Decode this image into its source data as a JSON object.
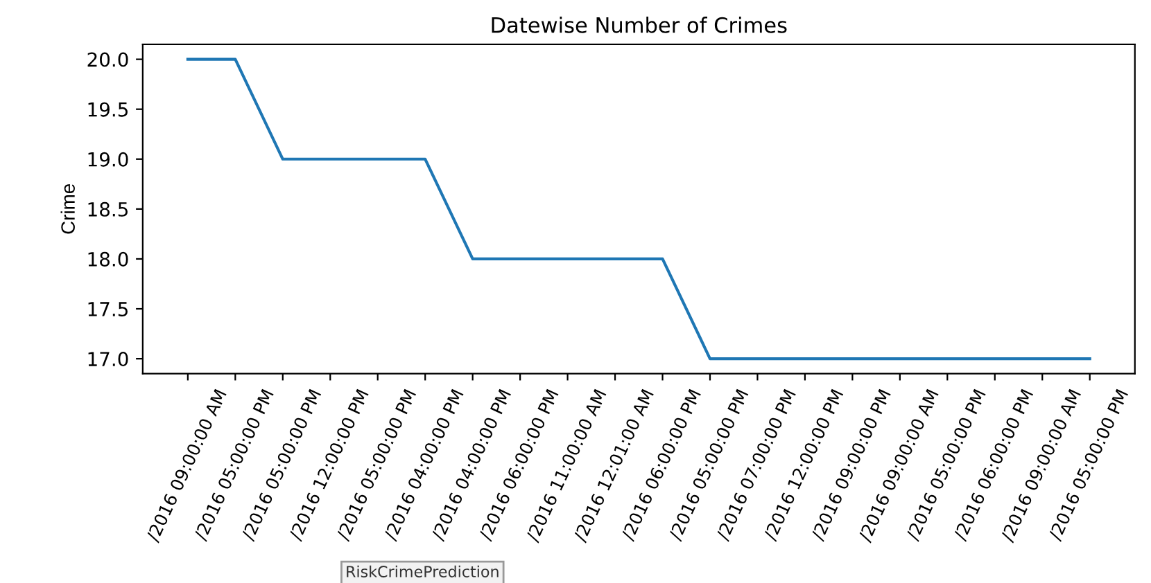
{
  "chart_data": {
    "type": "line",
    "title": "Datewise Number of Crimes",
    "ylabel": "Crime",
    "categories": [
      "/2016 09:00:00 AM",
      "/2016 05:00:00 PM",
      "/2016 05:00:00 PM",
      "/2016 12:00:00 PM",
      "/2016 05:00:00 PM",
      "/2016 04:00:00 PM",
      "/2016 04:00:00 PM",
      "/2016 06:00:00 PM",
      "/2016 11:00:00 AM",
      "/2016 12:01:00 AM",
      "/2016 06:00:00 PM",
      "/2016 05:00:00 PM",
      "/2016 07:00:00 PM",
      "/2016 12:00:00 PM",
      "/2016 09:00:00 PM",
      "/2016 09:00:00 AM",
      "/2016 05:00:00 PM",
      "/2016 06:00:00 PM",
      "/2016 09:00:00 AM",
      "/2016 05:00:00 PM"
    ],
    "series": [
      {
        "color": "#1f77b4",
        "values": [
          20,
          20,
          19,
          19,
          19,
          19,
          18,
          18,
          18,
          18,
          18,
          17,
          17,
          17,
          17,
          17,
          17,
          17,
          17,
          17
        ]
      }
    ],
    "ylim": [
      16.85,
      20.15
    ],
    "yticks": [
      {
        "value": 17,
        "label": "17.0"
      },
      {
        "value": 17.5,
        "label": "17.5"
      },
      {
        "value": 18,
        "label": "18.0"
      },
      {
        "value": 18.5,
        "label": "18.5"
      },
      {
        "value": 19,
        "label": "19.0"
      },
      {
        "value": 19.5,
        "label": "19.5"
      },
      {
        "value": 20,
        "label": "20.0"
      }
    ],
    "grid": false,
    "legend": false,
    "marker": "none",
    "line_style": "solid",
    "annotations": [
      "RiskCrimePrediction"
    ]
  }
}
